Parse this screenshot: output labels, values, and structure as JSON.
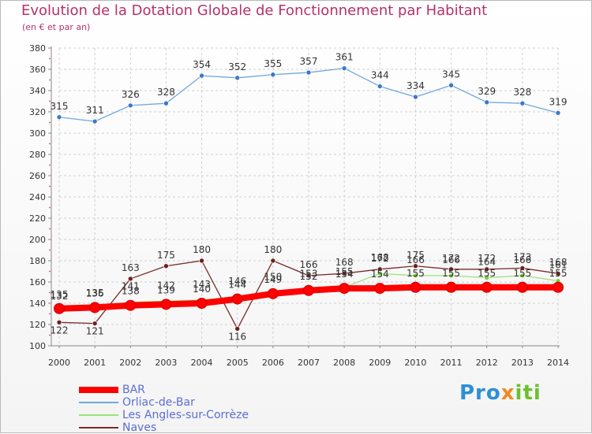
{
  "header": {
    "title": "Evolution de la Dotation Globale de Fonctionnement par Habitant",
    "subtitle": "(en € et par an)"
  },
  "brand": {
    "p1": "Pro",
    "p2": "x",
    "p3": "iti"
  },
  "colors": {
    "title": "#b7306b",
    "axis_text": "#333333",
    "grid": "#d0d0d0",
    "legend_text": "#5b6ed3"
  },
  "chart_data": {
    "type": "line",
    "title": "Evolution de la Dotation Globale de Fonctionnement par Habitant",
    "ylabel": "(en € et par an)",
    "xlabel": "",
    "ylim": [
      100,
      380
    ],
    "yticks": [
      100,
      120,
      140,
      160,
      180,
      200,
      220,
      240,
      260,
      280,
      300,
      320,
      340,
      360,
      380
    ],
    "categories": [
      "2000",
      "2001",
      "2002",
      "2003",
      "2004",
      "2005",
      "2006",
      "2007",
      "2008",
      "2009",
      "2010",
      "2011",
      "2012",
      "2013",
      "2014"
    ],
    "grid": true,
    "legend_position": "bottom-left",
    "series": [
      {
        "name": "BAR",
        "color": "#ff0000",
        "marker": "#ff0000",
        "values": [
          135,
          136,
          138,
          139,
          140,
          144,
          149,
          152,
          154,
          154,
          155,
          155,
          155,
          155,
          155
        ],
        "labels": [
          "135",
          "136",
          "138",
          "139",
          "140",
          "144",
          "149",
          "152",
          "154",
          "154",
          "155",
          "155",
          "155",
          "155",
          "155"
        ]
      },
      {
        "name": "Orliac-de-Bar",
        "color": "#6fa8dc",
        "marker": "#3c78c8",
        "values": [
          315,
          311,
          326,
          328,
          354,
          352,
          355,
          357,
          361,
          344,
          334,
          345,
          329,
          328,
          319
        ],
        "labels": [
          "315",
          "311",
          "326",
          "328",
          "354",
          "352",
          "355",
          "357",
          "361",
          "344",
          "334",
          "345",
          "329",
          "328",
          "319"
        ]
      },
      {
        "name": "Les Angles-sur-Corrèze",
        "color": "#9ee07a",
        "marker": "#7ccd3c",
        "values": [
          132,
          135,
          141,
          142,
          143,
          146,
          150,
          153,
          155,
          168,
          166,
          166,
          164,
          166,
          161
        ],
        "labels": [
          "132",
          "135",
          "141",
          "142",
          "143",
          "146",
          "150",
          "153",
          "155",
          "168",
          "166",
          "166",
          "164",
          "166",
          "161"
        ]
      },
      {
        "name": "Naves",
        "color": "#7a2a2a",
        "marker": "#6e2020",
        "values": [
          122,
          121,
          163,
          175,
          180,
          116,
          180,
          166,
          168,
          172,
          175,
          172,
          172,
          173,
          168
        ],
        "labels": [
          "122",
          "121",
          "163",
          "175",
          "180",
          "116",
          "180",
          "166",
          "168",
          "172",
          "175",
          "172",
          "172",
          "173",
          "168"
        ]
      }
    ]
  }
}
